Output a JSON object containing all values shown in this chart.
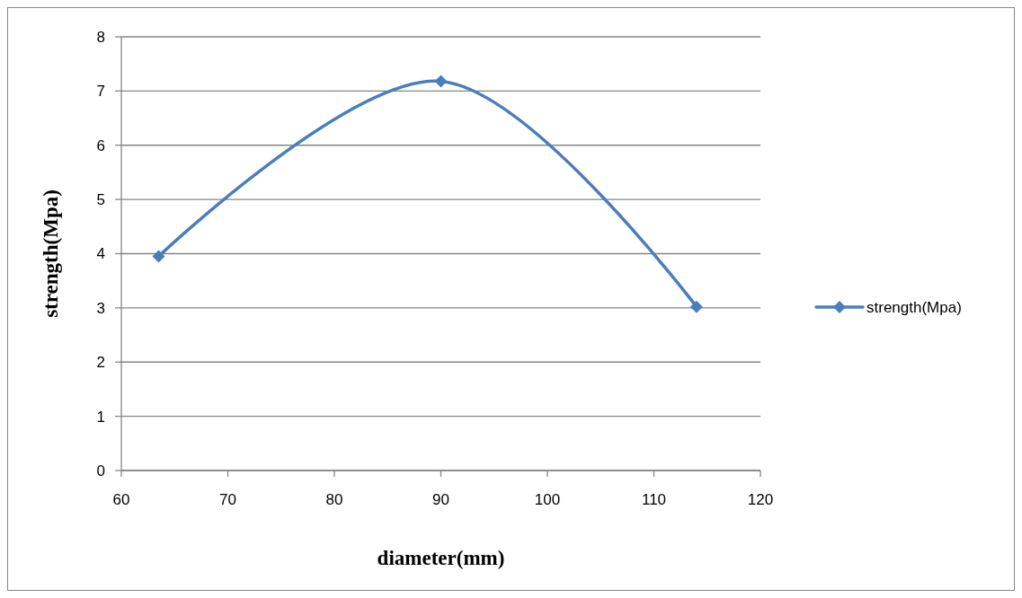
{
  "chart_data": {
    "type": "line",
    "xlabel": "diameter(mm)",
    "ylabel": "strength(Mpa)",
    "x": [
      63.5,
      90,
      114
    ],
    "series": [
      {
        "name": "strength(Mpa)",
        "color": "#4a7ebb",
        "values": [
          3.95,
          7.18,
          3.02
        ]
      }
    ],
    "xlim": [
      60,
      120
    ],
    "xticks": [
      60,
      70,
      80,
      90,
      100,
      110,
      120
    ],
    "ylim": [
      0,
      8
    ],
    "yticks": [
      0,
      1,
      2,
      3,
      4,
      5,
      6,
      7,
      8
    ],
    "grid": "y",
    "legend": "right",
    "marker": "diamond",
    "line_style": "solid"
  }
}
